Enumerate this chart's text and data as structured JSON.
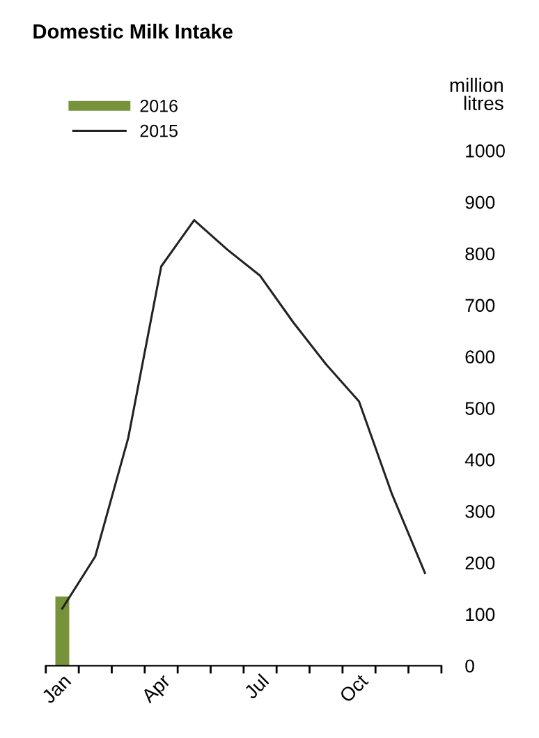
{
  "chart_data": {
    "type": "bar",
    "title": "Domestic Milk Intake",
    "ylabel": "million\nlitres",
    "categories": [
      "Jan",
      null,
      null,
      "Apr",
      null,
      null,
      "Jul",
      null,
      null,
      "Oct",
      null,
      null
    ],
    "series": [
      {
        "name": "2016",
        "color": "#76933c",
        "values": [
          134,
          null,
          null,
          null,
          null,
          null,
          null,
          null,
          null,
          null,
          null,
          null
        ]
      },
      {
        "name": "2015",
        "type": "line",
        "color": "#222222",
        "values": [
          111,
          212,
          442,
          775,
          865,
          808,
          757,
          667,
          585,
          513,
          333,
          180
        ]
      }
    ],
    "ylim": [
      0,
      1000
    ],
    "yticks": [
      0,
      100,
      200,
      300,
      400,
      500,
      600,
      700,
      800,
      900,
      1000
    ],
    "grid": false,
    "legend": "top left",
    "marker": "none",
    "line_style": "solid"
  }
}
